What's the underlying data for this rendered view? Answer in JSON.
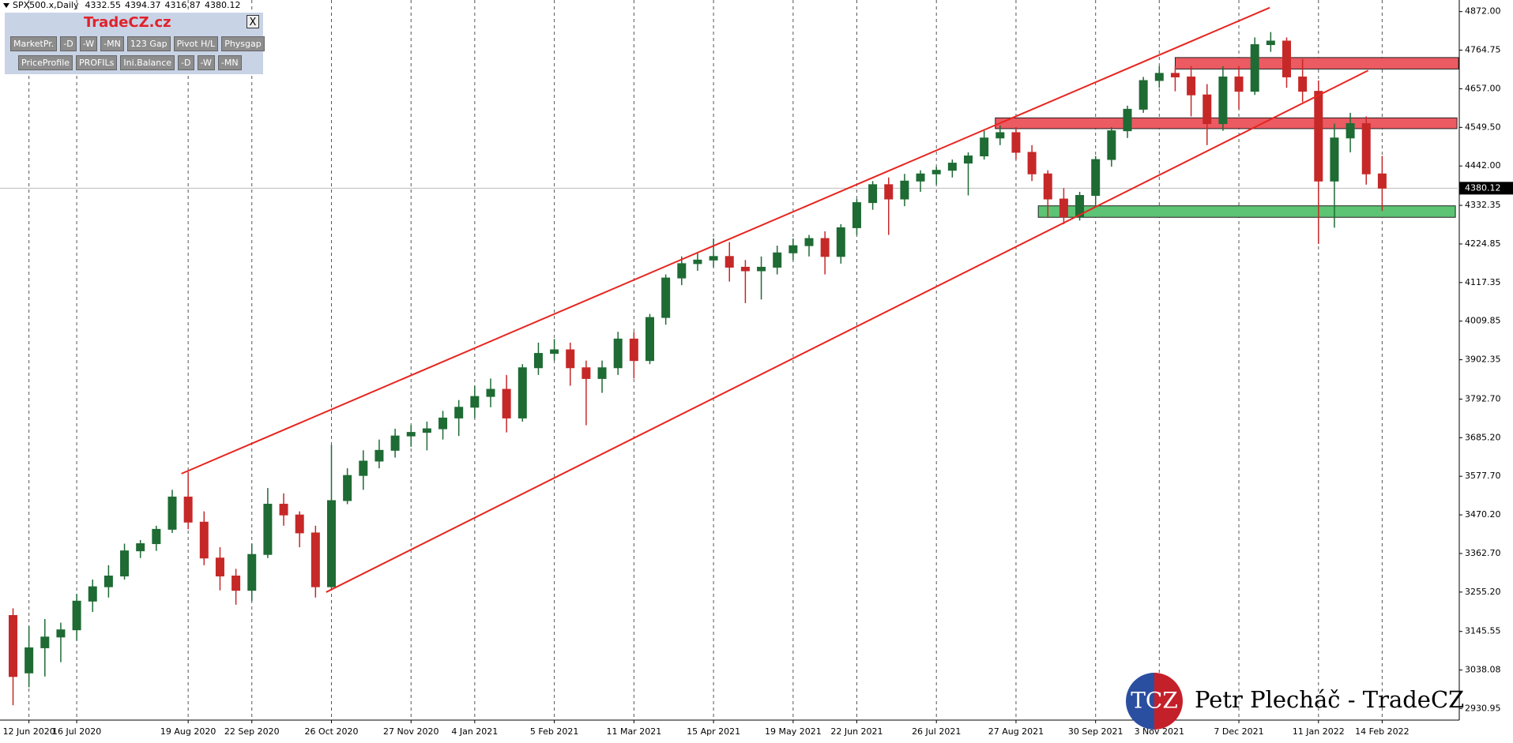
{
  "chart_data": {
    "type": "candlestick",
    "title": "SPX500.x,Daily",
    "header_values": [
      4332.55,
      4394.37,
      4316.87,
      4380.12
    ],
    "categories": [
      null,
      "12 Jun 2020",
      null,
      null,
      "16 Jul 2020",
      null,
      null,
      null,
      null,
      null,
      null,
      "19 Aug 2020",
      null,
      null,
      null,
      "22 Sep 2020",
      null,
      null,
      null,
      null,
      "26 Oct 2020",
      null,
      null,
      null,
      null,
      "27 Nov 2020",
      null,
      null,
      null,
      "4 Jan 2021",
      null,
      null,
      null,
      null,
      "5 Feb 2021",
      null,
      null,
      null,
      null,
      "11 Mar 2021",
      null,
      null,
      null,
      null,
      "15 Apr 2021",
      null,
      null,
      null,
      null,
      "19 May 2021",
      null,
      null,
      null,
      "22 Jun 2021",
      null,
      null,
      null,
      null,
      "26 Jul 2021",
      null,
      null,
      null,
      null,
      "27 Aug 2021",
      null,
      null,
      null,
      null,
      "30 Sep 2021",
      null,
      null,
      null,
      "3 Nov 2021",
      null,
      null,
      null,
      null,
      "7 Dec 2021",
      null,
      null,
      null,
      null,
      "11 Jan 2022",
      null,
      null,
      null,
      "14 Feb 2022"
    ],
    "ohlc": [
      [
        3190,
        3210,
        2940,
        3020
      ],
      [
        3030,
        3160,
        2990,
        3100
      ],
      [
        3100,
        3180,
        3020,
        3130
      ],
      [
        3130,
        3170,
        3060,
        3150
      ],
      [
        3150,
        3250,
        3120,
        3230
      ],
      [
        3230,
        3290,
        3200,
        3270
      ],
      [
        3270,
        3330,
        3240,
        3300
      ],
      [
        3300,
        3390,
        3290,
        3370
      ],
      [
        3370,
        3400,
        3350,
        3390
      ],
      [
        3390,
        3440,
        3370,
        3430
      ],
      [
        3430,
        3540,
        3420,
        3520
      ],
      [
        3520,
        3590,
        3430,
        3450
      ],
      [
        3450,
        3480,
        3330,
        3350
      ],
      [
        3350,
        3380,
        3260,
        3300
      ],
      [
        3300,
        3320,
        3220,
        3260
      ],
      [
        3260,
        3390,
        3230,
        3360
      ],
      [
        3360,
        3545,
        3350,
        3500
      ],
      [
        3500,
        3530,
        3440,
        3470
      ],
      [
        3470,
        3480,
        3380,
        3420
      ],
      [
        3420,
        3440,
        3240,
        3270
      ],
      [
        3270,
        3665,
        3260,
        3510
      ],
      [
        3510,
        3600,
        3500,
        3580
      ],
      [
        3580,
        3650,
        3540,
        3620
      ],
      [
        3620,
        3680,
        3600,
        3650
      ],
      [
        3650,
        3710,
        3630,
        3690
      ],
      [
        3690,
        3720,
        3660,
        3700
      ],
      [
        3700,
        3730,
        3650,
        3710
      ],
      [
        3710,
        3760,
        3680,
        3740
      ],
      [
        3740,
        3790,
        3690,
        3770
      ],
      [
        3770,
        3830,
        3740,
        3800
      ],
      [
        3800,
        3850,
        3770,
        3820
      ],
      [
        3820,
        3860,
        3700,
        3740
      ],
      [
        3740,
        3890,
        3730,
        3880
      ],
      [
        3880,
        3950,
        3860,
        3920
      ],
      [
        3920,
        3960,
        3900,
        3930
      ],
      [
        3930,
        3950,
        3830,
        3880
      ],
      [
        3880,
        3900,
        3720,
        3850
      ],
      [
        3850,
        3900,
        3810,
        3880
      ],
      [
        3880,
        3980,
        3860,
        3960
      ],
      [
        3960,
        3980,
        3850,
        3900
      ],
      [
        3900,
        4030,
        3890,
        4020
      ],
      [
        4020,
        4140,
        4000,
        4130
      ],
      [
        4130,
        4190,
        4110,
        4170
      ],
      [
        4170,
        4200,
        4150,
        4180
      ],
      [
        4180,
        4240,
        4160,
        4190
      ],
      [
        4190,
        4230,
        4120,
        4160
      ],
      [
        4160,
        4180,
        4060,
        4150
      ],
      [
        4150,
        4190,
        4070,
        4160
      ],
      [
        4160,
        4220,
        4140,
        4200
      ],
      [
        4200,
        4240,
        4180,
        4220
      ],
      [
        4220,
        4250,
        4190,
        4240
      ],
      [
        4240,
        4260,
        4140,
        4190
      ],
      [
        4190,
        4280,
        4170,
        4270
      ],
      [
        4270,
        4350,
        4250,
        4340
      ],
      [
        4340,
        4400,
        4320,
        4390
      ],
      [
        4390,
        4410,
        4250,
        4350
      ],
      [
        4350,
        4420,
        4330,
        4400
      ],
      [
        4400,
        4430,
        4370,
        4420
      ],
      [
        4420,
        4440,
        4390,
        4430
      ],
      [
        4430,
        4460,
        4410,
        4450
      ],
      [
        4450,
        4480,
        4360,
        4470
      ],
      [
        4470,
        4540,
        4460,
        4520
      ],
      [
        4520,
        4555,
        4500,
        4535
      ],
      [
        4535,
        4550,
        4460,
        4480
      ],
      [
        4480,
        4500,
        4400,
        4420
      ],
      [
        4420,
        4430,
        4300,
        4350
      ],
      [
        4350,
        4380,
        4280,
        4300
      ],
      [
        4300,
        4370,
        4290,
        4360
      ],
      [
        4360,
        4470,
        4330,
        4460
      ],
      [
        4460,
        4550,
        4440,
        4540
      ],
      [
        4540,
        4610,
        4520,
        4600
      ],
      [
        4600,
        4690,
        4590,
        4680
      ],
      [
        4680,
        4720,
        4660,
        4700
      ],
      [
        4700,
        4720,
        4650,
        4690
      ],
      [
        4690,
        4720,
        4580,
        4640
      ],
      [
        4640,
        4670,
        4500,
        4560
      ],
      [
        4560,
        4720,
        4540,
        4690
      ],
      [
        4690,
        4720,
        4600,
        4650
      ],
      [
        4650,
        4800,
        4640,
        4780
      ],
      [
        4780,
        4815,
        4760,
        4790
      ],
      [
        4790,
        4800,
        4660,
        4690
      ],
      [
        4690,
        4740,
        4620,
        4650
      ],
      [
        4650,
        4680,
        4225,
        4400
      ],
      [
        4400,
        4560,
        4270,
        4520
      ],
      [
        4520,
        4590,
        4480,
        4560
      ],
      [
        4560,
        4580,
        4390,
        4420
      ],
      [
        4420,
        4470,
        4316.87,
        4380.12
      ]
    ],
    "up_color": "#1e6b34",
    "down_color": "#c62828",
    "ylim": [
      2898.6,
      4904.3
    ],
    "yticks": [
      {
        "value": 4872,
        "label": "4872.00"
      },
      4764.75,
      {
        "value": 4657,
        "label": "4657.00"
      },
      {
        "value": 4549.5,
        "label": "4549.50"
      },
      {
        "value": 4442,
        "label": "4442.00"
      },
      4332.35,
      4224.85,
      4117.35,
      4009.85,
      3902.35,
      {
        "value": 3792.7,
        "label": "3792.70"
      },
      {
        "value": 3685.2,
        "label": "3685.20"
      },
      {
        "value": 3577.7,
        "label": "3577.70"
      },
      {
        "value": 3470.2,
        "label": "3470.20"
      },
      {
        "value": 3362.7,
        "label": "3362.70"
      },
      {
        "value": 3255.2,
        "label": "3255.20"
      },
      3145.55,
      3038.08,
      2930.95
    ],
    "grid": true,
    "last_price": 4380.12,
    "trendlines": [
      {
        "x": [
          10.58,
          78.94
        ],
        "y": [
          3585,
          4883
        ],
        "color": "#e8251f"
      },
      {
        "x": [
          19.67,
          85.12
        ],
        "y": [
          3255,
          4708
        ],
        "color": "#e8251f"
      }
    ],
    "zones": [
      {
        "x": [
          73.0,
          90.8
        ],
        "y": [
          4712,
          4744
        ],
        "color": "#ec5a62"
      },
      {
        "x": [
          61.7,
          90.7
        ],
        "y": [
          4546,
          4576
        ],
        "color": "#ec5a62"
      },
      {
        "x": [
          64.4,
          90.6
        ],
        "y": [
          4299,
          4331
        ],
        "color": "#5cc474"
      }
    ]
  },
  "toolbar": {
    "title": "TradeCZ.cz",
    "close": "X",
    "row1": [
      "MarketPr.",
      "-D",
      "-W",
      "-MN",
      "123 Gap",
      "Pivot H/L",
      "Physgap"
    ],
    "row2": [
      "PriceProfile",
      "PROFILs",
      "Ini.Balance",
      "-D",
      "-W",
      "-MN"
    ]
  },
  "watermark": {
    "logo": "TCZ",
    "text": "Petr Plecháč - TradeCZ"
  }
}
